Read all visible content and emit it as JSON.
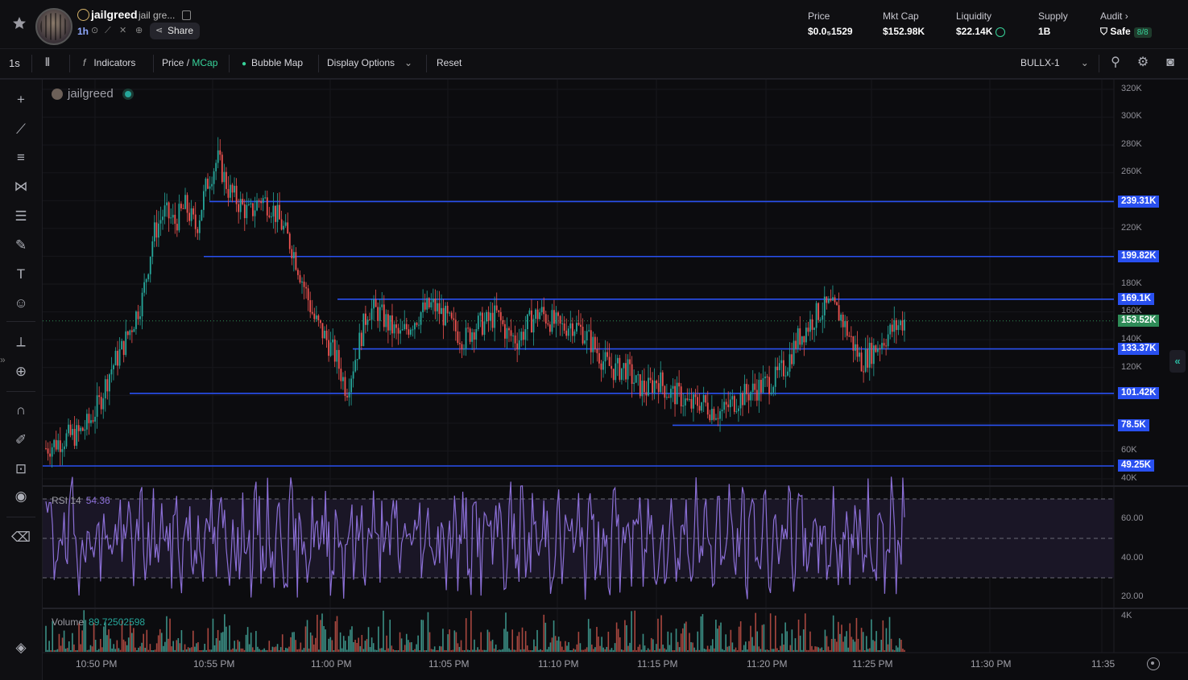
{
  "token": {
    "symbol": "jailgreed",
    "name_truncated": "jail gre...",
    "age": "1h",
    "share_label": "Share"
  },
  "stats": [
    {
      "label": "Price",
      "value": "$0.0₅1529"
    },
    {
      "label": "Mkt Cap",
      "value": "$152.98K"
    },
    {
      "label": "Liquidity",
      "value": "$22.14K"
    },
    {
      "label": "Supply",
      "value": "1B"
    },
    {
      "label": "Audit",
      "value": "Safe",
      "badge": "8/8"
    }
  ],
  "toolbar": {
    "interval": "1s",
    "indicators": "Indicators",
    "price": "Price",
    "slash": "/",
    "mcap": "MCap",
    "bubble_map": "Bubble Map",
    "display_options": "Display Options",
    "reset": "Reset",
    "preset": "BULLX-1"
  },
  "chart": {
    "legend_symbol": "jailgreed",
    "rsi_label": "RSI 14",
    "rsi_value": "54.36",
    "volume_label": "Volume",
    "volume_value": "89.72502598",
    "colors": {
      "up": "#26a69a",
      "down": "#ef5350",
      "level": "#2950f0",
      "rsi": "#8b6fd6"
    }
  },
  "chart_data": {
    "type": "candlestick",
    "y_axis_labels": [
      "320K",
      "300K",
      "280K",
      "260K",
      "240K",
      "220K",
      "200K",
      "180K",
      "160K",
      "140K",
      "120K",
      "100K",
      "80K",
      "60K",
      "40K"
    ],
    "level_lines": [
      "239.31K",
      "199.82K",
      "169.1K",
      "133.37K",
      "101.42K",
      "78.5K",
      "49.25K"
    ],
    "current_price_label": "153.52K",
    "rsi_axis_labels": [
      "60.00",
      "40.00",
      "20.00"
    ],
    "volume_axis_label": "4K",
    "time_labels": [
      "10:50 PM",
      "10:55 PM",
      "11:00 PM",
      "11:05 PM",
      "11:10 PM",
      "11:15 PM",
      "11:20 PM",
      "11:25 PM",
      "11:30 PM",
      "11:35"
    ],
    "price_path_k": [
      62,
      66,
      70,
      72,
      80,
      95,
      118,
      132,
      150,
      170,
      215,
      232,
      224,
      236,
      220,
      252,
      270,
      248,
      238,
      230,
      242,
      236,
      222,
      205,
      180,
      155,
      142,
      128,
      104,
      132,
      162,
      160,
      150,
      142,
      152,
      160,
      165,
      158,
      148,
      140,
      150,
      152,
      158,
      144,
      140,
      152,
      160,
      154,
      148,
      152,
      146,
      136,
      124,
      118,
      120,
      108,
      104,
      112,
      102,
      100,
      92,
      96,
      90,
      88,
      95,
      100,
      104,
      108,
      112,
      122,
      140,
      150,
      160,
      164,
      158,
      140,
      124,
      132,
      140,
      148,
      154
    ]
  }
}
